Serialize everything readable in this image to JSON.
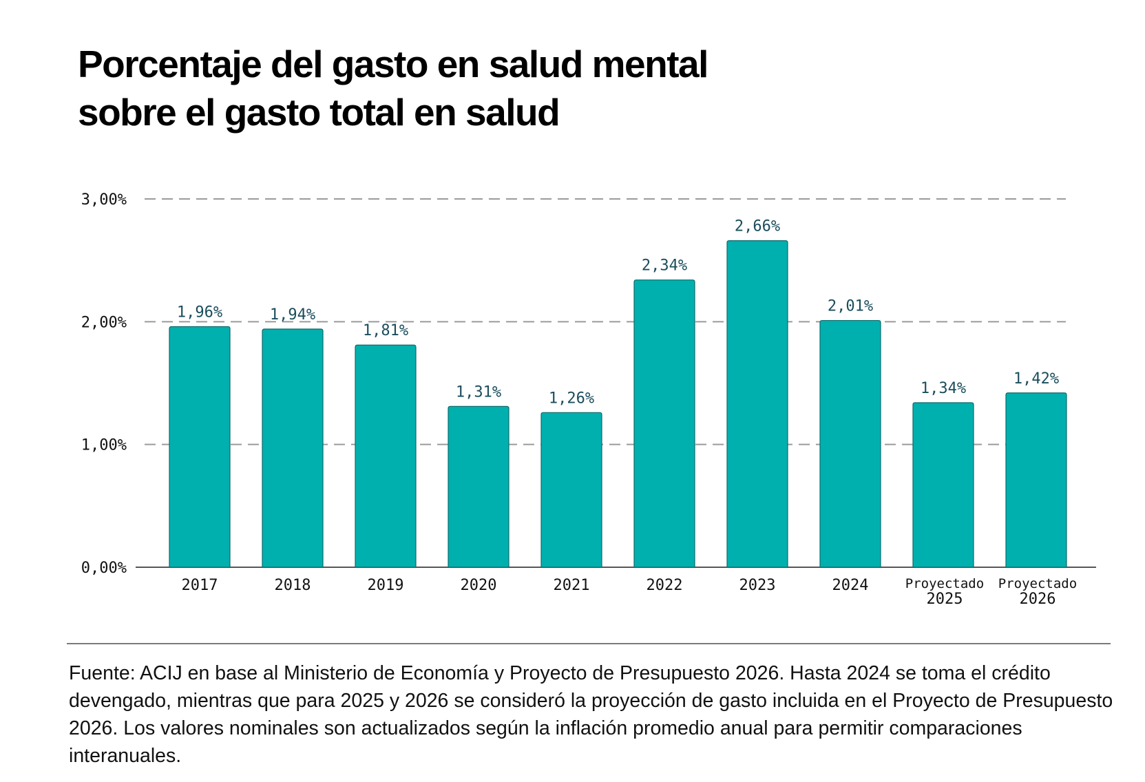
{
  "title_lines": [
    "Porcentaje del gasto en salud mental",
    "sobre el gasto total en salud"
  ],
  "source_note": "Fuente: ACIJ en base al Ministerio de Economía y Proyecto de Presupuesto 2026. Hasta 2024 se toma el crédito devengado, mientras que para 2025 y 2026 se consideró la proyección de gasto incluida en el Proyecto de Presupuesto 2026. Los valores nominales son actualizados según la inflación promedio anual para permitir comparaciones interanuales.",
  "colors": {
    "bar_fill": "#00b0ae",
    "bar_stroke": "#0e6b6b",
    "data_label": "#1a4d5c",
    "gridline": "#9a9a9a",
    "axis": "#555555"
  },
  "chart_data": {
    "type": "bar",
    "title": "Porcentaje del gasto en salud mental sobre el gasto total en salud",
    "xlabel": "",
    "ylabel": "",
    "ylim": [
      0,
      3
    ],
    "grid": true,
    "legend": "none",
    "yticks": [
      {
        "value": 0,
        "label": "0,00%"
      },
      {
        "value": 1,
        "label": "1,00%"
      },
      {
        "value": 2,
        "label": "2,00%"
      },
      {
        "value": 3,
        "label": "3,00%"
      }
    ],
    "categories": [
      {
        "prefix": "",
        "label": "2017"
      },
      {
        "prefix": "",
        "label": "2018"
      },
      {
        "prefix": "",
        "label": "2019"
      },
      {
        "prefix": "",
        "label": "2020"
      },
      {
        "prefix": "",
        "label": "2021"
      },
      {
        "prefix": "",
        "label": "2022"
      },
      {
        "prefix": "",
        "label": "2023"
      },
      {
        "prefix": "",
        "label": "2024"
      },
      {
        "prefix": "Proyectado",
        "label": "2025"
      },
      {
        "prefix": "Proyectado",
        "label": "2026"
      }
    ],
    "values": [
      1.96,
      1.94,
      1.81,
      1.31,
      1.26,
      2.34,
      2.66,
      2.01,
      1.34,
      1.42
    ],
    "value_labels": [
      "1,96%",
      "1,94%",
      "1,81%",
      "1,31%",
      "1,26%",
      "2,34%",
      "2,66%",
      "2,01%",
      "1,34%",
      "1,42%"
    ]
  }
}
